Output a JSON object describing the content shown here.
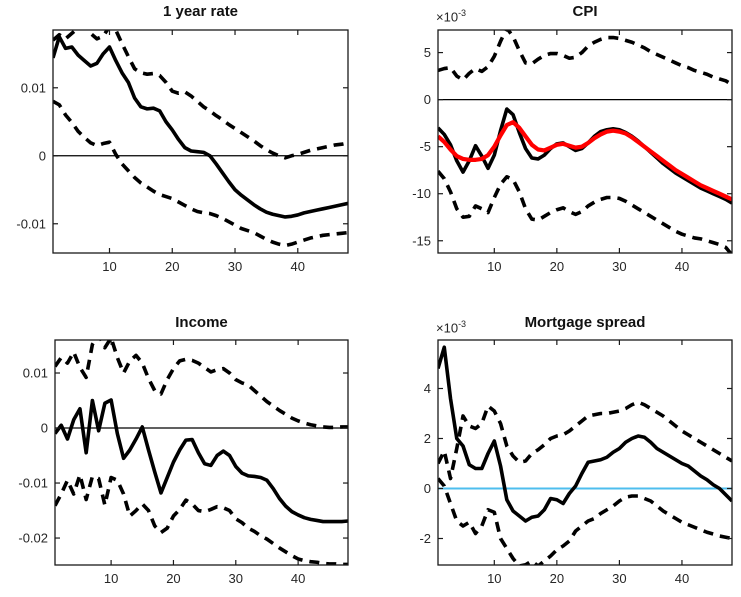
{
  "figure": {
    "background": "#ffffff",
    "axis_color": "#1a1a1a",
    "tick_label_color": "#262626",
    "title_color": "#111111",
    "tick_font_size": 13,
    "dash_pattern": "10 7"
  },
  "chart_data": [
    {
      "type": "line",
      "title": "1 year rate",
      "x": {
        "min": 1,
        "max": 48,
        "ticks": [
          10,
          20,
          30,
          40
        ]
      },
      "y": {
        "lim": [
          -0.0143,
          0.0185
        ],
        "ticks": [
          0.01,
          0,
          -0.01
        ],
        "tick_labels": [
          "0.01",
          "0",
          "-0.01"
        ]
      },
      "exponent": null,
      "zero_line": {
        "value": 0,
        "color": "#000000",
        "width": 1.2
      },
      "series": [
        {
          "name": "irf-median",
          "style": "solid",
          "color": "#000000",
          "width": 3.6,
          "values": [
            0.0144,
            0.0175,
            0.0158,
            0.016,
            0.0148,
            0.014,
            0.0132,
            0.0136,
            0.015,
            0.016,
            0.014,
            0.0122,
            0.0108,
            0.0085,
            0.0072,
            0.0069,
            0.007,
            0.0066,
            0.005,
            0.0038,
            0.0024,
            0.0012,
            0.0007,
            0.0006,
            0.0005,
            0.0,
            -0.0012,
            -0.0025,
            -0.0038,
            -0.005,
            -0.0058,
            -0.0065,
            -0.0072,
            -0.0078,
            -0.0083,
            -0.0086,
            -0.0088,
            -0.009,
            -0.0089,
            -0.0087,
            -0.0084,
            -0.0082,
            -0.008,
            -0.0078,
            -0.0076,
            -0.0074,
            -0.0072,
            -0.007
          ]
        },
        {
          "name": "band-upper",
          "style": "dashed",
          "color": "#000000",
          "width": 3.6,
          "values": [
            0.017,
            0.0178,
            0.0172,
            0.018,
            0.0188,
            0.0192,
            0.018,
            0.0172,
            0.0176,
            0.019,
            0.0185,
            0.0165,
            0.0146,
            0.0128,
            0.0122,
            0.012,
            0.0121,
            0.0118,
            0.0108,
            0.0095,
            0.0092,
            0.0094,
            0.0088,
            0.008,
            0.0072,
            0.0066,
            0.0059,
            0.0053,
            0.0046,
            0.004,
            0.0034,
            0.0028,
            0.0022,
            0.0015,
            0.0009,
            0.0004,
            0.0,
            -0.0003,
            0.0,
            0.0002,
            0.0005,
            0.0008,
            0.001,
            0.0012,
            0.0014,
            0.0016,
            0.0017,
            0.0019
          ]
        },
        {
          "name": "band-lower",
          "style": "dashed",
          "color": "#000000",
          "width": 3.6,
          "values": [
            0.008,
            0.0075,
            0.006,
            0.0049,
            0.0036,
            0.0027,
            0.0019,
            0.0015,
            0.0018,
            0.002,
            0.0002,
            -0.0012,
            -0.0022,
            -0.0032,
            -0.004,
            -0.0046,
            -0.0052,
            -0.0057,
            -0.006,
            -0.0063,
            -0.0068,
            -0.0073,
            -0.0078,
            -0.0082,
            -0.0084,
            -0.0085,
            -0.0088,
            -0.0092,
            -0.0097,
            -0.0102,
            -0.0107,
            -0.011,
            -0.0113,
            -0.0118,
            -0.0123,
            -0.0127,
            -0.013,
            -0.0132,
            -0.013,
            -0.0127,
            -0.0124,
            -0.0121,
            -0.0119,
            -0.0117,
            -0.0116,
            -0.0115,
            -0.0114,
            -0.0113
          ]
        }
      ]
    },
    {
      "type": "line",
      "title": "CPI",
      "value_scale": "1e-3",
      "x": {
        "min": 1,
        "max": 48,
        "ticks": [
          10,
          20,
          30,
          40
        ]
      },
      "y": {
        "lim": [
          -16.3,
          7.4
        ],
        "ticks": [
          5,
          0,
          -5,
          -10,
          -15
        ],
        "tick_labels": [
          "5",
          "0",
          "-5",
          "-10",
          "-15"
        ]
      },
      "exponent": {
        "base": "×10",
        "power": "-3"
      },
      "zero_line": {
        "value": 0,
        "color": "#000000",
        "width": 1.2
      },
      "series": [
        {
          "name": "irf-median",
          "style": "solid",
          "color": "#000000",
          "width": 3.6,
          "values": [
            -3.0,
            -3.7,
            -4.8,
            -6.5,
            -7.7,
            -6.5,
            -4.9,
            -6.0,
            -7.3,
            -5.9,
            -3.3,
            -1.0,
            -1.6,
            -3.5,
            -5.2,
            -6.2,
            -6.3,
            -5.9,
            -5.2,
            -4.7,
            -4.6,
            -5.0,
            -5.4,
            -5.2,
            -4.6,
            -3.9,
            -3.4,
            -3.2,
            -3.1,
            -3.2,
            -3.5,
            -3.9,
            -4.4,
            -5.0,
            -5.6,
            -6.2,
            -6.8,
            -7.3,
            -7.8,
            -8.2,
            -8.6,
            -9.0,
            -9.4,
            -9.7,
            -10.0,
            -10.3,
            -10.6,
            -11.0
          ]
        },
        {
          "name": "irf-overlay-red",
          "style": "solid",
          "color": "#ff0000",
          "width": 4.2,
          "values": [
            -3.9,
            -4.5,
            -5.3,
            -6.0,
            -6.3,
            -6.4,
            -6.4,
            -6.3,
            -5.9,
            -5.0,
            -3.8,
            -2.7,
            -2.4,
            -3.0,
            -3.9,
            -4.8,
            -5.3,
            -5.4,
            -5.1,
            -4.8,
            -4.7,
            -4.9,
            -5.1,
            -5.0,
            -4.6,
            -4.1,
            -3.7,
            -3.4,
            -3.3,
            -3.4,
            -3.6,
            -4.0,
            -4.5,
            -5.0,
            -5.5,
            -6.0,
            -6.5,
            -7.0,
            -7.5,
            -7.9,
            -8.3,
            -8.7,
            -9.1,
            -9.4,
            -9.7,
            -10.0,
            -10.3,
            -10.6
          ]
        },
        {
          "name": "band-upper",
          "style": "dashed",
          "color": "#000000",
          "width": 3.6,
          "values": [
            3.1,
            3.3,
            3.4,
            2.5,
            2.1,
            2.8,
            3.3,
            3.0,
            3.5,
            4.6,
            6.2,
            7.6,
            6.7,
            5.2,
            3.9,
            3.8,
            4.3,
            4.7,
            4.9,
            4.9,
            4.7,
            4.4,
            4.5,
            5.0,
            5.7,
            6.1,
            6.4,
            6.6,
            6.6,
            6.5,
            6.3,
            6.1,
            5.8,
            5.5,
            5.1,
            4.8,
            4.5,
            4.2,
            3.9,
            3.6,
            3.4,
            3.1,
            2.9,
            2.7,
            2.4,
            2.2,
            2.0,
            1.6
          ]
        },
        {
          "name": "band-lower",
          "style": "dashed",
          "color": "#000000",
          "width": 3.6,
          "values": [
            -7.6,
            -8.4,
            -9.8,
            -11.6,
            -12.5,
            -12.4,
            -11.3,
            -11.6,
            -12.0,
            -10.4,
            -9.0,
            -8.2,
            -8.5,
            -9.8,
            -11.6,
            -12.7,
            -12.8,
            -12.4,
            -12.0,
            -11.7,
            -11.5,
            -11.9,
            -12.2,
            -11.9,
            -11.3,
            -10.9,
            -10.6,
            -10.4,
            -10.4,
            -10.5,
            -10.8,
            -11.2,
            -11.6,
            -12.0,
            -12.4,
            -12.8,
            -13.2,
            -13.6,
            -14.0,
            -14.3,
            -14.5,
            -14.7,
            -14.8,
            -15.0,
            -15.2,
            -15.4,
            -15.7,
            -16.5
          ]
        }
      ]
    },
    {
      "type": "line",
      "title": "Income",
      "x": {
        "min": 1,
        "max": 48,
        "ticks": [
          10,
          20,
          30,
          40
        ]
      },
      "y": {
        "lim": [
          -0.0249,
          0.016
        ],
        "ticks": [
          0.01,
          0,
          -0.01,
          -0.02
        ],
        "tick_labels": [
          "0.01",
          "0",
          "-0.01",
          "-0.02"
        ]
      },
      "exponent": null,
      "zero_line": {
        "value": 0,
        "color": "#000000",
        "width": 1.2
      },
      "series": [
        {
          "name": "irf-median",
          "style": "solid",
          "color": "#000000",
          "width": 3.6,
          "values": [
            -0.001,
            0.0005,
            -0.002,
            0.0015,
            0.0035,
            -0.0045,
            0.005,
            -0.0005,
            0.0045,
            0.0051,
            -0.001,
            -0.0055,
            -0.004,
            -0.002,
            0.0002,
            -0.004,
            -0.008,
            -0.0118,
            -0.009,
            -0.0062,
            -0.004,
            -0.0022,
            -0.0021,
            -0.0045,
            -0.0065,
            -0.0068,
            -0.005,
            -0.0042,
            -0.005,
            -0.007,
            -0.0082,
            -0.0087,
            -0.0088,
            -0.009,
            -0.0095,
            -0.011,
            -0.0128,
            -0.0142,
            -0.0152,
            -0.0158,
            -0.0163,
            -0.0166,
            -0.0168,
            -0.017,
            -0.017,
            -0.017,
            -0.017,
            -0.0169
          ]
        },
        {
          "name": "band-upper",
          "style": "dashed",
          "color": "#000000",
          "width": 3.6,
          "values": [
            0.0112,
            0.0128,
            0.0118,
            0.0138,
            0.011,
            0.0092,
            0.0152,
            0.017,
            0.0146,
            0.0164,
            0.0128,
            0.01,
            0.0122,
            0.0132,
            0.0118,
            0.009,
            0.0068,
            0.0062,
            0.0088,
            0.0108,
            0.0122,
            0.0125,
            0.0123,
            0.0118,
            0.011,
            0.0102,
            0.0106,
            0.0108,
            0.01,
            0.0088,
            0.0082,
            0.0078,
            0.0068,
            0.0058,
            0.0048,
            0.004,
            0.0032,
            0.0025,
            0.0018,
            0.0013,
            0.0009,
            0.0006,
            0.0004,
            0.0002,
            0.0001,
            0.0001,
            0.0002,
            0.0002
          ]
        },
        {
          "name": "band-lower",
          "style": "dashed",
          "color": "#000000",
          "width": 3.6,
          "values": [
            -0.0141,
            -0.012,
            -0.0095,
            -0.012,
            -0.0085,
            -0.013,
            -0.0088,
            -0.0092,
            -0.014,
            -0.009,
            -0.0095,
            -0.012,
            -0.016,
            -0.015,
            -0.0138,
            -0.015,
            -0.0178,
            -0.019,
            -0.0182,
            -0.016,
            -0.0148,
            -0.0131,
            -0.0138,
            -0.015,
            -0.0152,
            -0.0148,
            -0.0143,
            -0.0145,
            -0.015,
            -0.0165,
            -0.0172,
            -0.0182,
            -0.0188,
            -0.0196,
            -0.0202,
            -0.021,
            -0.0218,
            -0.0225,
            -0.0232,
            -0.0238,
            -0.0241,
            -0.0243,
            -0.0244,
            -0.0246,
            -0.0247,
            -0.0247,
            -0.0248,
            -0.0248
          ]
        }
      ]
    },
    {
      "type": "line",
      "title": "Mortgage spread",
      "value_scale": "1e-3",
      "x": {
        "min": 1,
        "max": 48,
        "ticks": [
          10,
          20,
          30,
          40
        ]
      },
      "y": {
        "lim": [
          -3.06,
          5.94
        ],
        "ticks": [
          4,
          2,
          0,
          -2
        ],
        "tick_labels": [
          "4",
          "2",
          "0",
          "-2"
        ]
      },
      "exponent": {
        "base": "×10",
        "power": "-3"
      },
      "zero_line": {
        "value": 0,
        "color": "#4dbeee",
        "width": 2
      },
      "series": [
        {
          "name": "irf-median",
          "style": "solid",
          "color": "#000000",
          "width": 3.6,
          "values": [
            4.8,
            5.65,
            3.6,
            2.0,
            1.7,
            0.95,
            0.8,
            0.8,
            1.4,
            1.9,
            0.9,
            -0.45,
            -0.9,
            -1.1,
            -1.3,
            -1.15,
            -1.1,
            -0.85,
            -0.4,
            -0.45,
            -0.6,
            -0.2,
            0.1,
            0.6,
            1.05,
            1.1,
            1.15,
            1.25,
            1.45,
            1.6,
            1.85,
            2.0,
            2.1,
            2.05,
            1.85,
            1.6,
            1.45,
            1.3,
            1.15,
            1.0,
            0.9,
            0.7,
            0.5,
            0.35,
            0.15,
            0.0,
            -0.25,
            -0.5
          ]
        },
        {
          "name": "band-upper",
          "style": "dashed",
          "color": "#000000",
          "width": 3.6,
          "values": [
            1.0,
            1.5,
            0.4,
            1.6,
            2.9,
            2.5,
            2.4,
            2.6,
            3.3,
            3.1,
            2.6,
            1.7,
            1.3,
            1.05,
            1.1,
            1.4,
            1.55,
            1.75,
            2.0,
            2.1,
            2.15,
            2.3,
            2.5,
            2.7,
            2.9,
            2.95,
            3.0,
            3.0,
            3.05,
            3.1,
            3.2,
            3.35,
            3.45,
            3.35,
            3.2,
            3.05,
            2.9,
            2.7,
            2.5,
            2.3,
            2.15,
            2.0,
            1.85,
            1.7,
            1.55,
            1.4,
            1.25,
            1.1
          ]
        },
        {
          "name": "band-lower",
          "style": "dashed",
          "color": "#000000",
          "width": 3.6,
          "values": [
            0.4,
            0.1,
            -0.6,
            -1.3,
            -1.5,
            -1.35,
            -1.8,
            -1.5,
            -0.85,
            -0.95,
            -2.0,
            -2.4,
            -2.8,
            -3.1,
            -3.05,
            -2.9,
            -3.1,
            -2.9,
            -2.7,
            -2.45,
            -2.3,
            -2.1,
            -1.7,
            -1.5,
            -1.3,
            -1.2,
            -1.0,
            -0.85,
            -0.7,
            -0.5,
            -0.35,
            -0.3,
            -0.3,
            -0.4,
            -0.5,
            -0.7,
            -0.9,
            -1.05,
            -1.2,
            -1.35,
            -1.45,
            -1.55,
            -1.65,
            -1.75,
            -1.82,
            -1.9,
            -1.95,
            -2.0
          ]
        }
      ]
    }
  ]
}
